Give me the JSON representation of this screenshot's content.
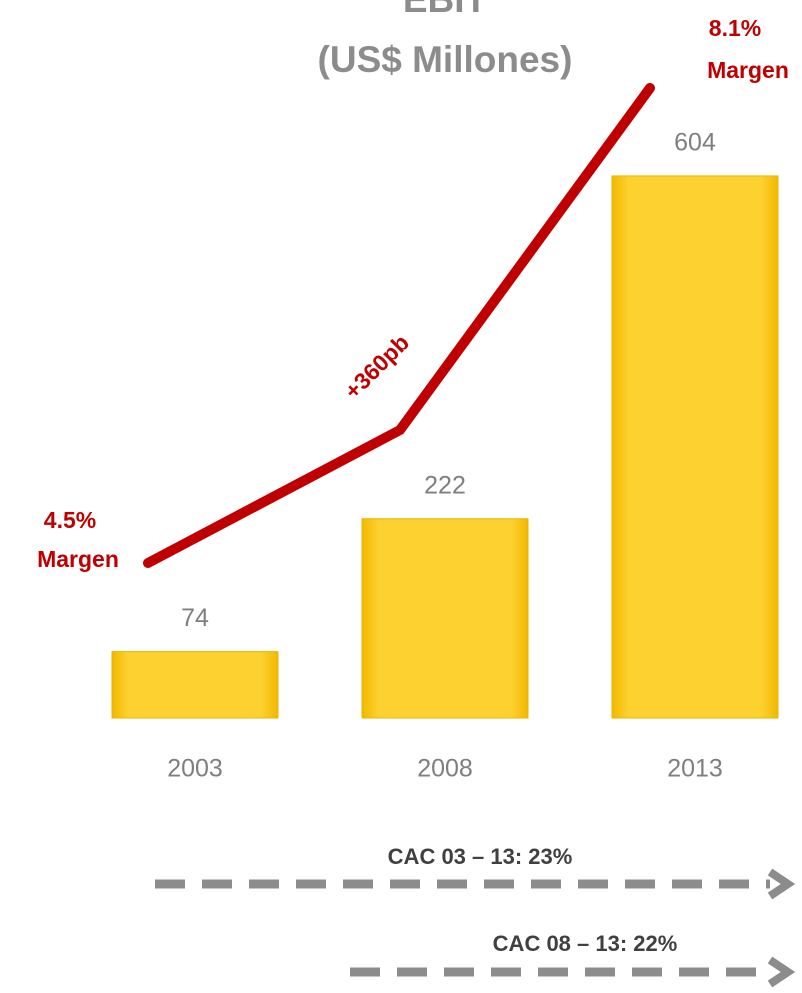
{
  "chart_data": {
    "type": "bar",
    "title": "EBIT",
    "subtitle": "(US$ Millones)",
    "categories": [
      "2003",
      "2008",
      "2013"
    ],
    "values": [
      74,
      222,
      604
    ],
    "color": "#fdd12f",
    "ylim": [
      0,
      800
    ],
    "annotations": {
      "start_margin": "4.5%",
      "start_label": "Margen",
      "end_margin": "8.1%",
      "end_label": "Margen",
      "change": "+360pb",
      "cagr_1": "CAC 03 – 13: 23%",
      "cagr_2": "CAC 08 – 13: 22%"
    }
  }
}
